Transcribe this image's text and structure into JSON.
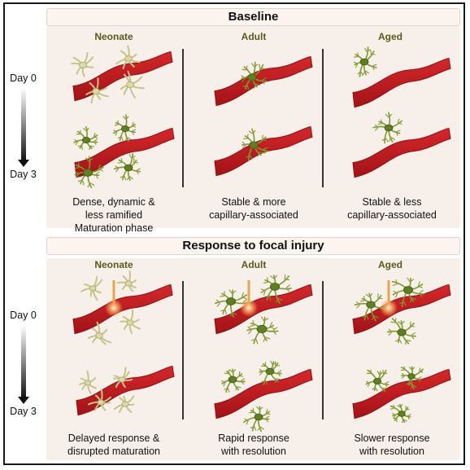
{
  "sections": [
    {
      "title": "Baseline",
      "columns": [
        {
          "title": "Neonate",
          "caption": [
            "Dense, dynamic &",
            "less ramified",
            "Maturation phase"
          ]
        },
        {
          "title": "Adult",
          "caption": [
            "Stable & more",
            "capillary-associated"
          ]
        },
        {
          "title": "Aged",
          "caption": [
            "Stable & less",
            "capillary-associated"
          ]
        }
      ]
    },
    {
      "title": "Response to focal injury",
      "columns": [
        {
          "title": "Neonate",
          "caption": [
            "Delayed response &",
            "disrupted maturation"
          ]
        },
        {
          "title": "Adult",
          "caption": [
            "Rapid response",
            "with resolution"
          ]
        },
        {
          "title": "Aged",
          "caption": [
            "Slower response",
            "with resolution"
          ]
        }
      ]
    }
  ],
  "timeline": {
    "start": "Day 0",
    "end": "Day 3"
  },
  "colors": {
    "vessel": "#c0191c",
    "vessel_dark": "#8f1014",
    "microglia_pale": "#c6c48a",
    "microglia_green": "#7f9a2e",
    "microglia_body": "#5e7f22",
    "laser": "#e8a64a",
    "panel_bg": "#f7efe9"
  }
}
